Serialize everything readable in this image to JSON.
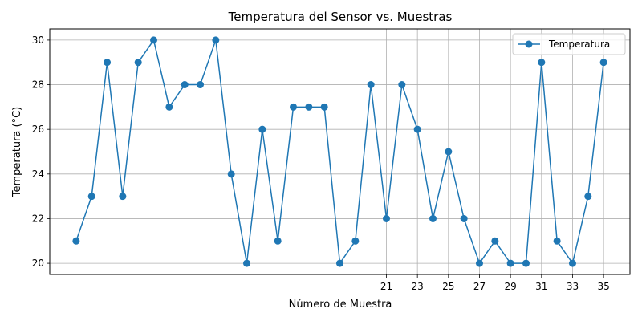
{
  "chart_data": {
    "type": "line",
    "title": "Temperatura del Sensor vs. Muestras",
    "xlabel": "Número de Muestra",
    "ylabel": "Temperatura (°C)",
    "x": [
      1,
      2,
      3,
      4,
      5,
      6,
      7,
      8,
      9,
      10,
      11,
      12,
      13,
      14,
      15,
      16,
      17,
      18,
      19,
      20,
      21,
      22,
      23,
      24,
      25,
      26,
      27,
      28,
      29,
      30,
      31,
      32,
      33,
      34,
      35
    ],
    "series": [
      {
        "name": "Temperatura",
        "color": "#1f77b4",
        "values": [
          21,
          23,
          29,
          23,
          29,
          30,
          27,
          28,
          28,
          30,
          24,
          20,
          26,
          21,
          27,
          27,
          27,
          20,
          21,
          28,
          22,
          28,
          26,
          22,
          25,
          22,
          20,
          21,
          20,
          20,
          29,
          21,
          20,
          23,
          29
        ]
      }
    ],
    "xlim": [
      -0.7,
      36.7
    ],
    "ylim": [
      19.5,
      30.5
    ],
    "xticks": [
      21,
      23,
      25,
      27,
      29,
      31,
      33,
      35
    ],
    "xgrid_lines": [
      21,
      23,
      25,
      27,
      29,
      31,
      33,
      35
    ],
    "yticks": [
      20,
      22,
      24,
      26,
      28,
      30
    ],
    "grid": true,
    "legend_position": "top-right"
  }
}
